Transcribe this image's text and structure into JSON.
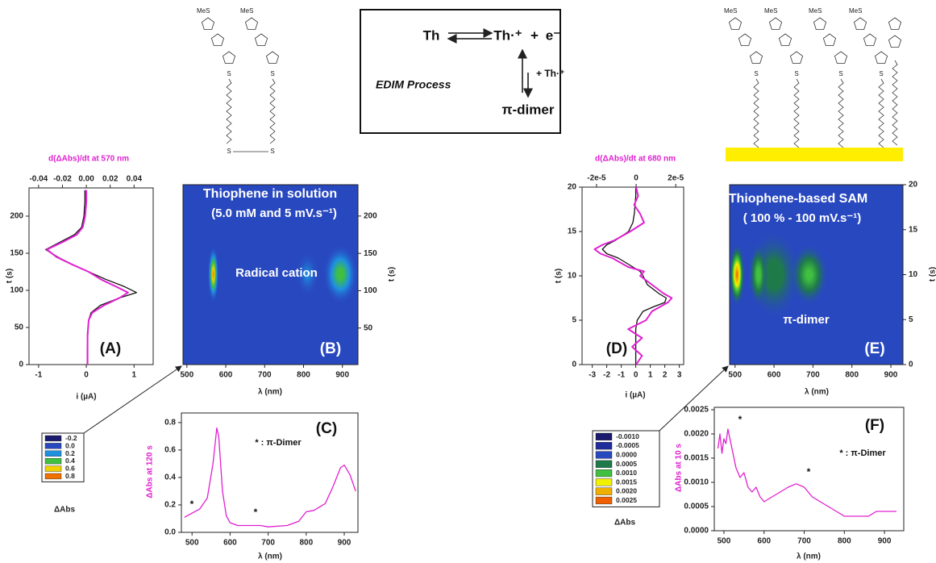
{
  "scheme": {
    "reactant": "Th",
    "product": "Th·⁺",
    "plus": "+",
    "electron": "e⁻",
    "dimer": "π-dimer",
    "reagent": "+ Th·⁺",
    "process": "EDIM Process"
  },
  "molecules": {
    "methylthio": "MeS",
    "sulfur": "S"
  },
  "chart_data": [
    {
      "type": "line",
      "orientation": "vertical",
      "panel": "(A)",
      "x2label": "d(ΔAbs)/dt at 570 nm",
      "xlabel": "i (µA)",
      "ylabel": "t (s)",
      "xlim": [
        -1.2,
        1.4
      ],
      "xticks": [
        -1,
        0,
        1
      ],
      "x2lim": [
        -0.048,
        0.056
      ],
      "x2ticks": [
        -0.04,
        -0.02,
        {
          "value": 0,
          "label": "0.00"
        },
        0.02,
        0.04
      ],
      "ylim": [
        0,
        238
      ],
      "yticks": [
        0,
        50,
        100,
        150,
        200
      ],
      "y": [
        0,
        20,
        40,
        60,
        70,
        80,
        90,
        97,
        105,
        115,
        125,
        135,
        145,
        155,
        165,
        175,
        185,
        200,
        220,
        235
      ],
      "series": [
        {
          "name": "i",
          "color": "#111111",
          "values": [
            0.02,
            0.02,
            0.03,
            0.05,
            0.1,
            0.3,
            0.7,
            1.05,
            0.8,
            0.4,
            0.05,
            -0.3,
            -0.6,
            -0.85,
            -0.55,
            -0.25,
            -0.1,
            -0.05,
            -0.03,
            -0.03
          ]
        },
        {
          "name": "d(ΔAbs)/dt",
          "color": "#e020d0",
          "axis": "x2",
          "values": [
            0.001,
            0.001,
            0.001,
            0.002,
            0.005,
            0.015,
            0.028,
            0.035,
            0.025,
            0.012,
            0.002,
            -0.012,
            -0.025,
            -0.033,
            -0.02,
            -0.008,
            -0.003,
            -0.001,
            0,
            0
          ]
        }
      ]
    },
    {
      "type": "heatmap",
      "panel": "(B)",
      "xlabel": "λ (nm)",
      "ylabel": "t (s)",
      "y_axis": "right",
      "xlim": [
        490,
        940
      ],
      "xticks": [
        500,
        600,
        700,
        800,
        900
      ],
      "ylim": [
        1,
        242
      ],
      "yticks": [
        50,
        100,
        150,
        200
      ],
      "annotations": [
        "Thiophene in solution",
        "(5.0 mM and 5 mV.s⁻¹)",
        "Radical cation"
      ],
      "background_value": 0,
      "peaks": [
        {
          "x": 568,
          "y": 122,
          "value": 0.8,
          "x_width": 14,
          "y_height": 38
        },
        {
          "x": 895,
          "y": 122,
          "value": 0.5,
          "x_width": 45,
          "y_height": 40
        },
        {
          "x": 810,
          "y": 122,
          "value": 0.22,
          "x_width": 30,
          "y_height": 30
        }
      ],
      "colorbar": {
        "title": "ΔAbs",
        "levels": [
          -0.2,
          {
            "value": 0,
            "label": "0.0"
          },
          0.2,
          0.4,
          0.6,
          0.8
        ],
        "colors": [
          "#1a1a6e",
          "#2848c0",
          "#1e90e0",
          "#40c040",
          "#f0d000",
          "#f07000"
        ]
      }
    },
    {
      "type": "line",
      "panel": "(C)",
      "xlabel": "λ (nm)",
      "ylabel": "ΔAbs at 120 s",
      "xlim": [
        472,
        936
      ],
      "xticks": [
        500,
        600,
        700,
        800,
        900
      ],
      "ylim": [
        0,
        0.87
      ],
      "yticks": [
        {
          "value": 0,
          "label": "0.0"
        },
        0.2,
        0.4,
        0.6,
        0.8
      ],
      "annotations": [
        "* : π-Dimer",
        "*",
        "*"
      ],
      "x": [
        480,
        500,
        520,
        540,
        555,
        565,
        570,
        580,
        590,
        600,
        620,
        650,
        680,
        700,
        750,
        780,
        800,
        820,
        850,
        870,
        890,
        900,
        915,
        930
      ],
      "series": [
        {
          "name": "ΔAbs",
          "color": "#e020d0",
          "values": [
            0.11,
            0.14,
            0.17,
            0.25,
            0.5,
            0.76,
            0.7,
            0.3,
            0.12,
            0.07,
            0.05,
            0.05,
            0.05,
            0.04,
            0.05,
            0.08,
            0.15,
            0.16,
            0.21,
            0.33,
            0.47,
            0.49,
            0.42,
            0.3
          ]
        }
      ]
    },
    {
      "type": "line",
      "orientation": "vertical",
      "panel": "(D)",
      "x2label": "d(ΔAbs)/dt at 680 nm",
      "xlabel": "i (µA)",
      "ylabel": "t (s)",
      "xlim": [
        -3.7,
        3.3
      ],
      "xticks": [
        -3,
        -2,
        -1,
        0,
        1,
        2,
        3
      ],
      "x2lim": [
        -2.73e-05,
        2.4e-05
      ],
      "x2ticks": [
        {
          "value": -2e-05,
          "label": "-2e-5"
        },
        0,
        {
          "value": 2e-05,
          "label": "2e-5"
        }
      ],
      "ylim": [
        0,
        20
      ],
      "yticks": [
        0,
        5,
        10,
        15,
        20
      ],
      "y": [
        0,
        1,
        2,
        3,
        4,
        5,
        6,
        6.5,
        7,
        7.5,
        8,
        9,
        10,
        10.5,
        11,
        12,
        12.5,
        13,
        13.5,
        14,
        15,
        16,
        17,
        18,
        19,
        20
      ],
      "series": [
        {
          "name": "i",
          "color": "#111111",
          "values": [
            0,
            0,
            0,
            0,
            0,
            0.1,
            0.5,
            1.2,
            2.0,
            2.1,
            1.6,
            0.8,
            0.5,
            0.3,
            -0.2,
            -1.2,
            -2.0,
            -2.3,
            -2.0,
            -1.4,
            -0.5,
            -0.2,
            -0.1,
            -0.05,
            0,
            0
          ]
        },
        {
          "name": "d(ΔAbs)/dt",
          "color": "#e020d0",
          "axis": "x2",
          "values": [
            0,
            3e-06,
            -2e-06,
            3e-06,
            -4e-06,
            5e-06,
            8e-06,
            1.2e-05,
            1.6e-05,
            1.8e-05,
            1.4e-05,
            8e-06,
            2e-06,
            4e-06,
            -4e-06,
            -1.2e-05,
            -1.8e-05,
            -2.1e-05,
            -1.7e-05,
            -1.1e-05,
            -3e-06,
            4e-06,
            2e-06,
            -1e-06,
            1e-06,
            0
          ]
        }
      ]
    },
    {
      "type": "heatmap",
      "panel": "(E)",
      "xlabel": "λ (nm)",
      "ylabel": "t (s)",
      "y_axis": "right",
      "xlim": [
        486,
        931
      ],
      "xticks": [
        500,
        600,
        700,
        800,
        900
      ],
      "ylim": [
        0,
        20
      ],
      "yticks": [
        0,
        5,
        10,
        15,
        20
      ],
      "annotations": [
        "Thiophene-based SAM",
        "( 100 %  - 100 mV.s⁻¹)",
        "π-dimer"
      ],
      "background_value": 0,
      "peaks": [
        {
          "x": 600,
          "y": 10,
          "value": 0.0008,
          "x_width": 70,
          "y_height": 5
        },
        {
          "x": 560,
          "y": 10,
          "value": 0.0013,
          "x_width": 25,
          "y_height": 3.5
        },
        {
          "x": 690,
          "y": 10,
          "value": 0.0012,
          "x_width": 50,
          "y_height": 3.5
        },
        {
          "x": 505,
          "y": 10,
          "value": 0.0025,
          "x_width": 20,
          "y_height": 3.5
        }
      ],
      "colorbar": {
        "title": "ΔAbs",
        "levels": [
          {
            "value": -0.001,
            "label": "-0.0010"
          },
          -0.0005,
          {
            "value": 0,
            "label": "0.0000"
          },
          0.0005,
          {
            "value": 0.001,
            "label": "0.0010"
          },
          0.0015,
          {
            "value": 0.002,
            "label": "0.0020"
          },
          0.0025
        ],
        "colors": [
          "#1a1a6e",
          "#1f2d9a",
          "#2848c0",
          "#1f7a4a",
          "#40c040",
          "#f0f000",
          "#f0b000",
          "#f06000"
        ]
      }
    },
    {
      "type": "line",
      "panel": "(F)",
      "xlabel": "λ (nm)",
      "ylabel": "ΔAbs at 10 s",
      "xlim": [
        476,
        948
      ],
      "xticks": [
        500,
        600,
        700,
        800,
        900
      ],
      "ylim": [
        0,
        0.00255
      ],
      "yticks": [
        {
          "value": 0,
          "label": "0.0000"
        },
        0.0005,
        {
          "value": 0.001,
          "label": "0.0010"
        },
        0.0015,
        {
          "value": 0.002,
          "label": "0.0020"
        },
        0.0025
      ],
      "annotations": [
        "* : π-Dimer",
        "*",
        "*"
      ],
      "x": [
        485,
        490,
        495,
        500,
        505,
        510,
        515,
        520,
        530,
        540,
        550,
        560,
        570,
        580,
        590,
        600,
        620,
        640,
        660,
        680,
        700,
        720,
        740,
        760,
        780,
        800,
        820,
        840,
        860,
        880,
        900,
        930
      ],
      "series": [
        {
          "name": "ΔAbs",
          "color": "#e020d0",
          "values": [
            0.0017,
            0.002,
            0.0016,
            0.0019,
            0.0018,
            0.0021,
            0.0019,
            0.0017,
            0.0013,
            0.0011,
            0.0012,
            0.0009,
            0.0008,
            0.0009,
            0.0007,
            0.0006,
            0.0007,
            0.0008,
            0.0009,
            0.00097,
            0.0009,
            0.0007,
            0.0006,
            0.0005,
            0.0004,
            0.0003,
            0.0003,
            0.0003,
            0.0003,
            0.0004,
            0.0004,
            0.0004
          ]
        }
      ]
    }
  ]
}
